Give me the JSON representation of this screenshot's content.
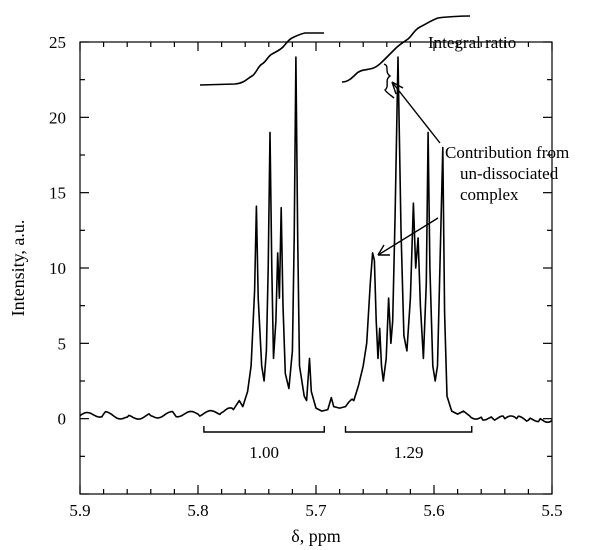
{
  "chart_data": {
    "type": "line",
    "xlabel": "δ, ppm",
    "ylabel": "Intensity, a.u.",
    "xlim": [
      5.9,
      5.5
    ],
    "ylim": [
      -5,
      25
    ],
    "x_reversed": true,
    "xticks": [
      5.9,
      5.8,
      5.7,
      5.6,
      5.5
    ],
    "xtick_labels": [
      "5.9",
      "5.8",
      "5.7",
      "5.6",
      "5.5"
    ],
    "yticks": [
      0,
      5,
      10,
      15,
      20,
      25
    ],
    "ytick_labels": [
      "0",
      "5",
      "10",
      "15",
      "20",
      "25"
    ],
    "grid": false,
    "series": [
      {
        "points": [
          [
            5.9,
            0.2
          ],
          [
            5.88,
            0.3
          ],
          [
            5.86,
            0.1
          ],
          [
            5.84,
            0.2
          ],
          [
            5.82,
            0.3
          ],
          [
            5.8,
            0.3
          ],
          [
            5.78,
            0.4
          ],
          [
            5.77,
            0.6
          ],
          [
            5.765,
            1.2
          ],
          [
            5.762,
            0.8
          ],
          [
            5.758,
            1.8
          ],
          [
            5.755,
            3.5
          ],
          [
            5.752,
            8.5
          ],
          [
            5.7505,
            14.1
          ],
          [
            5.749,
            8.0
          ],
          [
            5.746,
            3.5
          ],
          [
            5.744,
            2.5
          ],
          [
            5.742,
            4.5
          ],
          [
            5.7405,
            10.0
          ],
          [
            5.739,
            19.0
          ],
          [
            5.7375,
            10.0
          ],
          [
            5.736,
            4.0
          ],
          [
            5.734,
            6.5
          ],
          [
            5.7325,
            11.0
          ],
          [
            5.731,
            8.0
          ],
          [
            5.7295,
            14.0
          ],
          [
            5.728,
            7.5
          ],
          [
            5.726,
            3.0
          ],
          [
            5.723,
            2.0
          ],
          [
            5.72,
            4.5
          ],
          [
            5.7185,
            12.0
          ],
          [
            5.717,
            24.0
          ],
          [
            5.7155,
            12.0
          ],
          [
            5.714,
            3.5
          ],
          [
            5.71,
            1.5
          ],
          [
            5.708,
            1.2
          ],
          [
            5.7055,
            4.0
          ],
          [
            5.704,
            1.8
          ],
          [
            5.7,
            0.7
          ],
          [
            5.695,
            0.5
          ],
          [
            5.69,
            0.6
          ],
          [
            5.687,
            1.4
          ],
          [
            5.685,
            0.8
          ],
          [
            5.68,
            0.7
          ],
          [
            5.675,
            0.8
          ],
          [
            5.668,
            1.2
          ],
          [
            5.664,
            2.2
          ],
          [
            5.66,
            3.5
          ],
          [
            5.657,
            5.0
          ],
          [
            5.654,
            9.0
          ],
          [
            5.652,
            11.0
          ],
          [
            5.6505,
            10.5
          ],
          [
            5.649,
            6.5
          ],
          [
            5.6475,
            4.0
          ],
          [
            5.646,
            6.0
          ],
          [
            5.6445,
            3.5
          ],
          [
            5.643,
            2.5
          ],
          [
            5.6405,
            4.0
          ],
          [
            5.6385,
            8.0
          ],
          [
            5.6365,
            5.0
          ],
          [
            5.635,
            6.5
          ],
          [
            5.633,
            13.5
          ],
          [
            5.6305,
            24.0
          ],
          [
            5.628,
            12.5
          ],
          [
            5.6255,
            5.5
          ],
          [
            5.623,
            4.5
          ],
          [
            5.62,
            8.0
          ],
          [
            5.6175,
            14.3
          ],
          [
            5.6155,
            10.0
          ],
          [
            5.6135,
            12.0
          ],
          [
            5.6115,
            7.5
          ],
          [
            5.609,
            4.0
          ],
          [
            5.6065,
            9.0
          ],
          [
            5.605,
            19.0
          ],
          [
            5.6035,
            10.0
          ],
          [
            5.601,
            3.5
          ],
          [
            5.599,
            2.5
          ],
          [
            5.597,
            3.5
          ],
          [
            5.595,
            10.0
          ],
          [
            5.5925,
            18.0
          ],
          [
            5.591,
            7.0
          ],
          [
            5.589,
            1.5
          ],
          [
            5.585,
            0.5
          ],
          [
            5.58,
            0.3
          ],
          [
            5.575,
            0.5
          ],
          [
            5.57,
            0.2
          ],
          [
            5.56,
            0.1
          ],
          [
            5.55,
            0.0
          ],
          [
            5.54,
            0.0
          ],
          [
            5.53,
            0.0
          ],
          [
            5.52,
            -0.1
          ],
          [
            5.51,
            0.0
          ],
          [
            5.5,
            -0.1
          ]
        ]
      }
    ],
    "annotations": [
      {
        "text": "Integral ratio"
      },
      {
        "lines": [
          "Contribution from",
          "un-dissociated",
          "complex"
        ]
      }
    ],
    "integrals": [
      {
        "label": "1.00",
        "range": [
          5.795,
          5.693
        ]
      },
      {
        "label": "1.29",
        "range": [
          5.675,
          5.568
        ]
      }
    ]
  }
}
